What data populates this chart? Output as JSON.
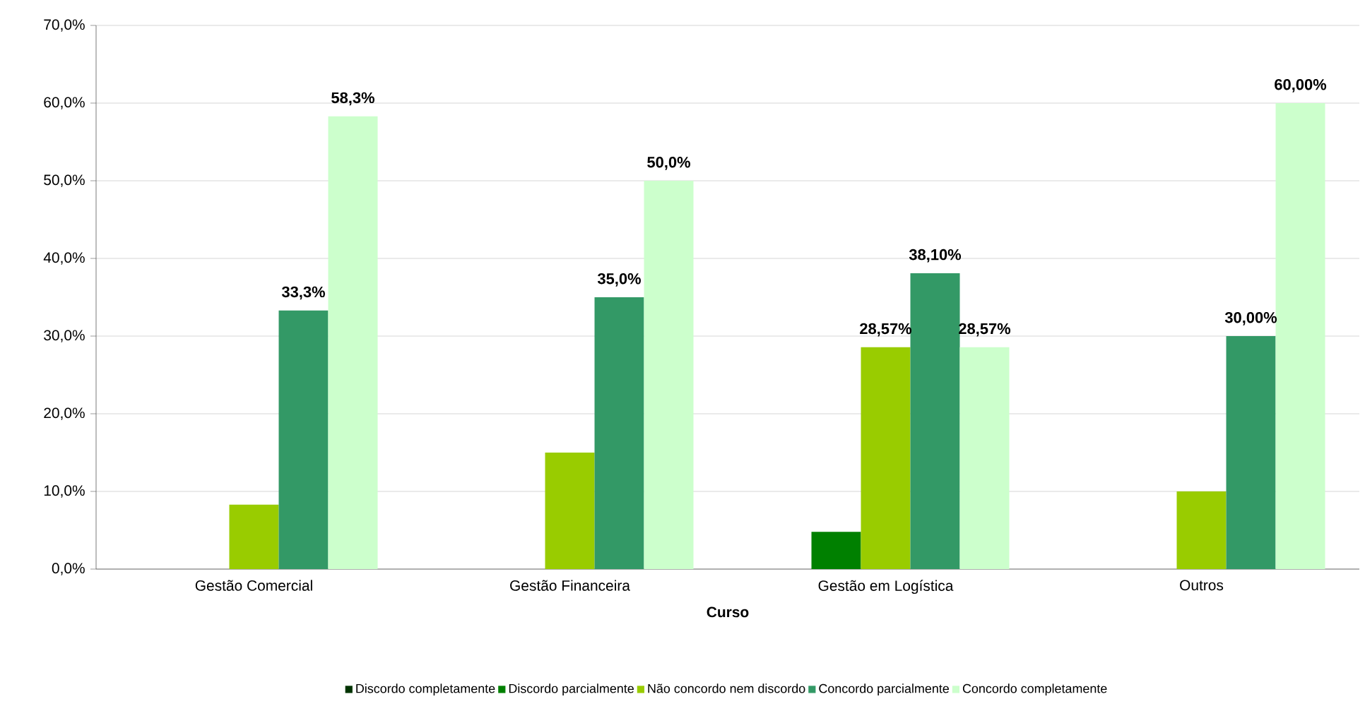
{
  "chart_data": {
    "type": "bar",
    "xlabel": "Curso",
    "categories": [
      "Gestão Comercial",
      "Gestão Financeira",
      "Gestão em Logística",
      "Outros"
    ],
    "series": [
      {
        "name": "Discordo completamente",
        "color": "#003300",
        "values": [
          0,
          0,
          0,
          0
        ]
      },
      {
        "name": "Discordo parcialmente",
        "color": "#008000",
        "values": [
          0,
          0,
          4.8,
          0
        ]
      },
      {
        "name": "Não concordo nem discordo",
        "color": "#99cc00",
        "values": [
          8.3,
          15,
          28.57,
          10
        ],
        "value_labels": [
          null,
          null,
          "28,57%",
          null
        ]
      },
      {
        "name": "Concordo parcialmente",
        "color": "#339966",
        "values": [
          33.3,
          35,
          38.1,
          30
        ],
        "value_labels": [
          "33,3%",
          "35,0%",
          "38,10%",
          "30,00%"
        ]
      },
      {
        "name": "Concordo completamente",
        "color": "#ccffcc",
        "values": [
          58.3,
          50,
          28.57,
          60
        ],
        "value_labels": [
          "58,3%",
          "50,0%",
          "28,57%",
          "60,00%"
        ]
      }
    ],
    "ylim": [
      0,
      70
    ],
    "yticks": [
      {
        "value": 0,
        "label": "0,0%"
      },
      {
        "value": 10,
        "label": "10,0%"
      },
      {
        "value": 20,
        "label": "20,0%"
      },
      {
        "value": 30,
        "label": "30,0%"
      },
      {
        "value": 40,
        "label": "40,0%"
      },
      {
        "value": 50,
        "label": "50,0%"
      },
      {
        "value": 60,
        "label": "60,0%"
      },
      {
        "value": 70,
        "label": "70,0%"
      }
    ],
    "grid": "y",
    "legend": "bottom"
  }
}
